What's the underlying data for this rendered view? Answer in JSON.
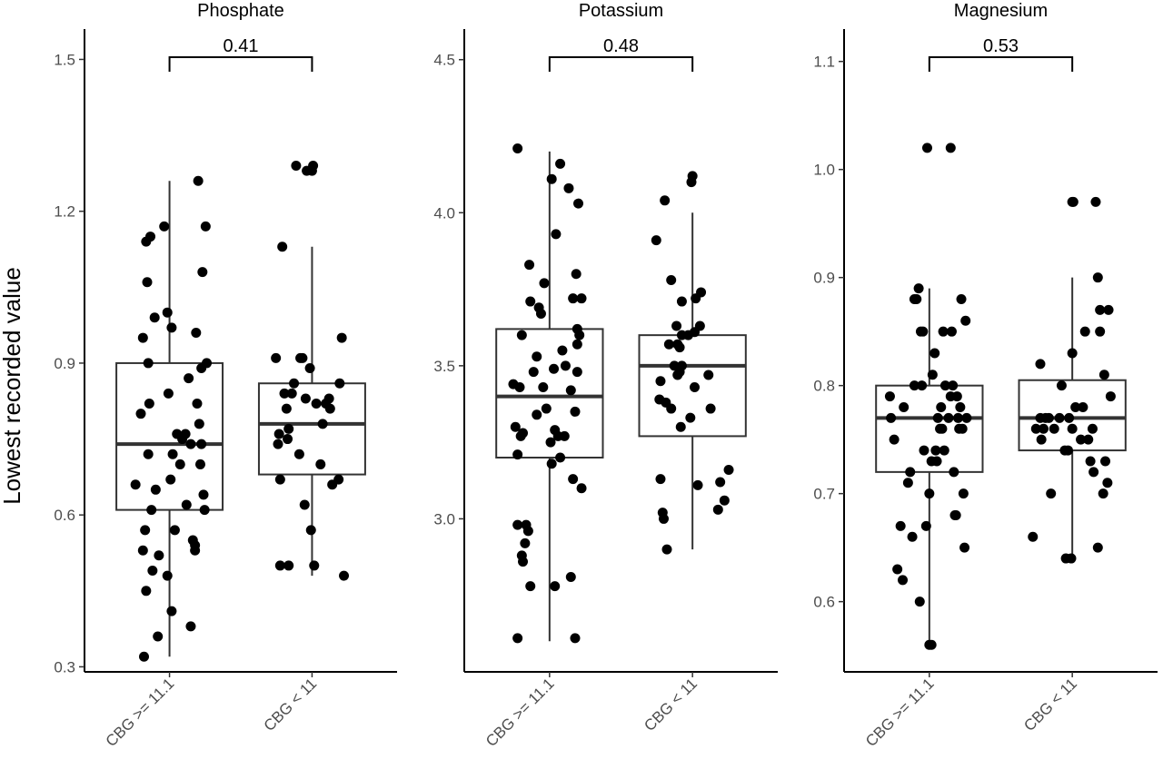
{
  "figure": {
    "ylabel": "Lowest recorded value"
  },
  "chart_data": [
    {
      "type": "box",
      "title": "Phosphate",
      "ylim": [
        0.29,
        1.56
      ],
      "yticks": [
        0.3,
        0.6,
        0.9,
        1.2,
        1.5
      ],
      "ytick_labels": [
        "0.3",
        "0.6",
        "0.9",
        "1.2",
        "1.5"
      ],
      "categories": [
        "CBG >= 11.1",
        "CBG < 11"
      ],
      "p_value": "0.41",
      "boxes": [
        {
          "min": 0.32,
          "q1": 0.61,
          "median": 0.74,
          "q3": 0.9,
          "max": 1.26
        },
        {
          "min": 0.48,
          "q1": 0.68,
          "median": 0.78,
          "q3": 0.86,
          "max": 1.13
        }
      ],
      "points": [
        [
          [
            -0.24,
            0.32
          ],
          [
            -0.32,
            0.66
          ],
          [
            -0.27,
            0.8
          ],
          [
            -0.25,
            0.95
          ],
          [
            -0.22,
            1.14
          ],
          [
            -0.21,
            1.06
          ],
          [
            -0.2,
            0.9
          ],
          [
            -0.2,
            0.72
          ],
          [
            -0.25,
            0.53
          ],
          [
            -0.23,
            0.57
          ],
          [
            -0.22,
            0.45
          ],
          [
            -0.19,
            0.82
          ],
          [
            -0.17,
            0.61
          ],
          [
            -0.16,
            0.49
          ],
          [
            -0.14,
            0.99
          ],
          [
            -0.13,
            0.65
          ],
          [
            -0.11,
            0.36
          ],
          [
            -0.1,
            0.52
          ],
          [
            -0.02,
            0.48
          ],
          [
            0.02,
            0.97
          ],
          [
            0.02,
            0.41
          ],
          [
            -0.01,
            0.84
          ],
          [
            0.01,
            0.67
          ],
          [
            0.03,
            0.72
          ],
          [
            0.05,
            0.57
          ],
          [
            0.07,
            0.76
          ],
          [
            0.1,
            0.7
          ],
          [
            0.12,
            0.75
          ],
          [
            0.15,
            0.76
          ],
          [
            0.16,
            0.62
          ],
          [
            0.18,
            0.87
          ],
          [
            0.2,
            0.74
          ],
          [
            0.22,
            0.55
          ],
          [
            0.24,
            0.53
          ],
          [
            0.25,
            0.96
          ],
          [
            0.26,
            0.82
          ],
          [
            0.28,
            0.78
          ],
          [
            0.29,
            0.7
          ],
          [
            0.3,
            0.89
          ],
          [
            0.31,
            1.08
          ],
          [
            0.32,
            0.64
          ],
          [
            0.33,
            0.61
          ],
          [
            0.34,
            1.17
          ],
          [
            0.35,
            0.9
          ],
          [
            0.3,
            0.74
          ],
          [
            0.27,
            1.26
          ],
          [
            0.2,
            0.38
          ],
          [
            0.24,
            0.54
          ],
          [
            -0.18,
            1.15
          ],
          [
            -0.02,
            1.0
          ],
          [
            -0.05,
            1.17
          ]
        ],
        [
          [
            -0.34,
            0.91
          ],
          [
            -0.32,
            0.74
          ],
          [
            -0.31,
            0.76
          ],
          [
            -0.3,
            0.67
          ],
          [
            -0.3,
            0.5
          ],
          [
            -0.28,
            1.13
          ],
          [
            -0.26,
            0.84
          ],
          [
            -0.24,
            0.81
          ],
          [
            -0.23,
            0.75
          ],
          [
            -0.22,
            0.77
          ],
          [
            -0.22,
            0.5
          ],
          [
            -0.19,
            0.84
          ],
          [
            -0.17,
            0.86
          ],
          [
            -0.15,
            1.29
          ],
          [
            -0.12,
            0.72
          ],
          [
            -0.11,
            0.91
          ],
          [
            -0.09,
            0.91
          ],
          [
            -0.07,
            0.62
          ],
          [
            -0.06,
            0.83
          ],
          [
            -0.05,
            1.28
          ],
          [
            -0.02,
            0.89
          ],
          [
            -0.01,
            0.57
          ],
          [
            0.01,
            1.29
          ],
          [
            0.0,
            1.28
          ],
          [
            0.02,
            0.5
          ],
          [
            0.04,
            0.82
          ],
          [
            0.08,
            0.7
          ],
          [
            0.1,
            0.78
          ],
          [
            0.13,
            0.82
          ],
          [
            0.16,
            0.83
          ],
          [
            0.17,
            0.81
          ],
          [
            0.19,
            0.66
          ],
          [
            0.25,
            0.67
          ],
          [
            0.26,
            0.86
          ],
          [
            0.28,
            0.95
          ],
          [
            0.3,
            0.48
          ]
        ]
      ]
    },
    {
      "type": "box",
      "title": "Potassium",
      "ylim": [
        2.5,
        4.6
      ],
      "yticks": [
        3.0,
        3.5,
        4.0,
        4.5
      ],
      "ytick_labels": [
        "3.0",
        "3.5",
        "4.0",
        "4.5"
      ],
      "categories": [
        "CBG >= 11.1",
        "CBG < 11"
      ],
      "p_value": "0.48",
      "boxes": [
        {
          "min": 2.6,
          "q1": 3.2,
          "median": 3.4,
          "q3": 3.62,
          "max": 4.2
        },
        {
          "min": 2.9,
          "q1": 3.27,
          "median": 3.5,
          "q3": 3.6,
          "max": 4.0
        }
      ],
      "points": [
        [
          [
            -0.3,
            4.21
          ],
          [
            -0.34,
            3.44
          ],
          [
            -0.3,
            3.21
          ],
          [
            -0.32,
            3.3
          ],
          [
            -0.28,
            3.43
          ],
          [
            -0.27,
            3.27
          ],
          [
            -0.26,
            3.6
          ],
          [
            -0.25,
            3.28
          ],
          [
            -0.3,
            2.98
          ],
          [
            -0.26,
            2.88
          ],
          [
            -0.25,
            2.86
          ],
          [
            -0.23,
            2.92
          ],
          [
            -0.22,
            2.98
          ],
          [
            -0.2,
            2.96
          ],
          [
            -0.18,
            2.78
          ],
          [
            -0.3,
            2.61
          ],
          [
            -0.19,
            3.83
          ],
          [
            -0.18,
            3.71
          ],
          [
            -0.15,
            3.48
          ],
          [
            -0.12,
            3.53
          ],
          [
            -0.1,
            3.69
          ],
          [
            -0.08,
            3.67
          ],
          [
            -0.05,
            3.77
          ],
          [
            -0.06,
            3.43
          ],
          [
            0.02,
            4.11
          ],
          [
            -0.03,
            3.36
          ],
          [
            0.01,
            3.25
          ],
          [
            0.02,
            3.18
          ],
          [
            0.04,
            3.49
          ],
          [
            0.05,
            3.29
          ],
          [
            0.06,
            3.93
          ],
          [
            0.08,
            3.27
          ],
          [
            0.1,
            3.2
          ],
          [
            0.1,
            4.16
          ],
          [
            0.12,
            3.55
          ],
          [
            0.14,
            3.27
          ],
          [
            0.15,
            3.5
          ],
          [
            0.18,
            4.08
          ],
          [
            0.2,
            3.42
          ],
          [
            0.22,
            3.13
          ],
          [
            0.22,
            3.72
          ],
          [
            0.24,
            3.35
          ],
          [
            0.25,
            3.8
          ],
          [
            0.26,
            3.62
          ],
          [
            0.27,
            4.03
          ],
          [
            0.28,
            3.6
          ],
          [
            0.3,
            3.72
          ],
          [
            0.3,
            3.1
          ],
          [
            0.2,
            2.81
          ],
          [
            0.24,
            2.61
          ],
          [
            -0.12,
            3.34
          ],
          [
            0.26,
            3.57
          ],
          [
            0.05,
            2.78
          ],
          [
            0.26,
            3.48
          ]
        ],
        [
          [
            -0.34,
            3.91
          ],
          [
            -0.3,
            3.13
          ],
          [
            -0.31,
            3.39
          ],
          [
            -0.3,
            3.45
          ],
          [
            -0.28,
            3.02
          ],
          [
            -0.27,
            3.0
          ],
          [
            -0.26,
            4.04
          ],
          [
            -0.25,
            3.38
          ],
          [
            -0.24,
            2.9
          ],
          [
            -0.22,
            3.57
          ],
          [
            -0.2,
            3.36
          ],
          [
            -0.2,
            3.78
          ],
          [
            -0.17,
            3.5
          ],
          [
            -0.15,
            3.63
          ],
          [
            -0.14,
            3.57
          ],
          [
            -0.12,
            3.48
          ],
          [
            -0.1,
            3.5
          ],
          [
            -0.1,
            3.71
          ],
          [
            -0.12,
            3.56
          ],
          [
            -0.14,
            3.47
          ],
          [
            -0.1,
            3.6
          ],
          [
            -0.11,
            3.3
          ],
          [
            -0.02,
            3.33
          ],
          [
            0.0,
            4.12
          ],
          [
            -0.01,
            4.1
          ],
          [
            0.02,
            3.43
          ],
          [
            0.02,
            3.61
          ],
          [
            0.03,
            3.72
          ],
          [
            0.05,
            3.11
          ],
          [
            0.07,
            3.63
          ],
          [
            0.08,
            3.74
          ],
          [
            0.15,
            3.47
          ],
          [
            0.17,
            3.36
          ],
          [
            0.24,
            3.03
          ],
          [
            0.26,
            3.12
          ],
          [
            0.3,
            3.06
          ],
          [
            0.34,
            3.16
          ],
          [
            -0.04,
            3.6
          ]
        ]
      ]
    },
    {
      "type": "box",
      "title": "Magnesium",
      "ylim": [
        0.535,
        1.13
      ],
      "yticks": [
        0.6,
        0.7,
        0.8,
        0.9,
        1.0,
        1.1
      ],
      "ytick_labels": [
        "0.6",
        "0.7",
        "0.8",
        "0.9",
        "1.0",
        "1.1"
      ],
      "categories": [
        "CBG >= 11.1",
        "CBG < 11"
      ],
      "p_value": "0.53",
      "boxes": [
        {
          "min": 0.56,
          "q1": 0.72,
          "median": 0.77,
          "q3": 0.8,
          "max": 0.89
        },
        {
          "min": 0.64,
          "q1": 0.74,
          "median": 0.77,
          "q3": 0.805,
          "max": 0.9
        }
      ],
      "points": [
        [
          [
            -0.37,
            0.79
          ],
          [
            -0.36,
            0.77
          ],
          [
            -0.33,
            0.75
          ],
          [
            -0.3,
            0.63
          ],
          [
            -0.27,
            0.67
          ],
          [
            -0.25,
            0.62
          ],
          [
            -0.24,
            0.78
          ],
          [
            -0.2,
            0.71
          ],
          [
            -0.18,
            0.72
          ],
          [
            -0.16,
            0.66
          ],
          [
            -0.14,
            0.88
          ],
          [
            -0.12,
            0.88
          ],
          [
            -0.1,
            0.89
          ],
          [
            -0.09,
            0.6
          ],
          [
            -0.08,
            0.85
          ],
          [
            -0.07,
            0.8
          ],
          [
            -0.06,
            0.85
          ],
          [
            -0.05,
            0.74
          ],
          [
            -0.03,
            0.67
          ],
          [
            0.0,
            0.56
          ],
          [
            0.02,
            0.56
          ],
          [
            0.0,
            0.7
          ],
          [
            0.02,
            0.73
          ],
          [
            0.03,
            0.81
          ],
          [
            0.05,
            0.83
          ],
          [
            0.06,
            0.74
          ],
          [
            0.07,
            0.73
          ],
          [
            0.08,
            0.77
          ],
          [
            0.1,
            0.76
          ],
          [
            0.11,
            0.78
          ],
          [
            0.13,
            0.85
          ],
          [
            0.14,
            0.74
          ],
          [
            0.15,
            0.8
          ],
          [
            0.18,
            0.77
          ],
          [
            0.2,
            0.79
          ],
          [
            0.21,
            0.85
          ],
          [
            0.22,
            0.8
          ],
          [
            0.23,
            0.72
          ],
          [
            0.24,
            0.68
          ],
          [
            0.25,
            0.68
          ],
          [
            0.26,
            0.79
          ],
          [
            0.27,
            0.77
          ],
          [
            0.28,
            0.76
          ],
          [
            0.29,
            0.78
          ],
          [
            0.3,
            0.88
          ],
          [
            0.31,
            0.76
          ],
          [
            0.32,
            0.7
          ],
          [
            0.33,
            0.65
          ],
          [
            0.34,
            0.86
          ],
          [
            0.35,
            0.77
          ],
          [
            -0.02,
            1.02
          ],
          [
            0.2,
            1.02
          ],
          [
            -0.14,
            0.8
          ],
          [
            0.12,
            0.76
          ]
        ],
        [
          [
            -0.37,
            0.66
          ],
          [
            -0.34,
            0.76
          ],
          [
            -0.3,
            0.82
          ],
          [
            -0.3,
            0.77
          ],
          [
            -0.29,
            0.75
          ],
          [
            -0.27,
            0.76
          ],
          [
            -0.25,
            0.77
          ],
          [
            -0.22,
            0.77
          ],
          [
            -0.2,
            0.7
          ],
          [
            -0.17,
            0.76
          ],
          [
            -0.12,
            0.77
          ],
          [
            -0.1,
            0.8
          ],
          [
            -0.07,
            0.74
          ],
          [
            -0.06,
            0.64
          ],
          [
            -0.04,
            0.74
          ],
          [
            -0.03,
            0.77
          ],
          [
            0.0,
            0.76
          ],
          [
            0.0,
            0.83
          ],
          [
            0.0,
            0.97
          ],
          [
            0.01,
            0.97
          ],
          [
            -0.01,
            0.64
          ],
          [
            0.03,
            0.78
          ],
          [
            0.08,
            0.75
          ],
          [
            0.1,
            0.78
          ],
          [
            0.12,
            0.85
          ],
          [
            0.15,
            0.75
          ],
          [
            0.17,
            0.73
          ],
          [
            0.19,
            0.76
          ],
          [
            0.2,
            0.72
          ],
          [
            0.22,
            0.97
          ],
          [
            0.24,
            0.9
          ],
          [
            0.24,
            0.65
          ],
          [
            0.26,
            0.85
          ],
          [
            0.26,
            0.87
          ],
          [
            0.29,
            0.7
          ],
          [
            0.3,
            0.81
          ],
          [
            0.31,
            0.73
          ],
          [
            0.33,
            0.71
          ],
          [
            0.34,
            0.87
          ],
          [
            0.36,
            0.79
          ]
        ]
      ]
    }
  ]
}
